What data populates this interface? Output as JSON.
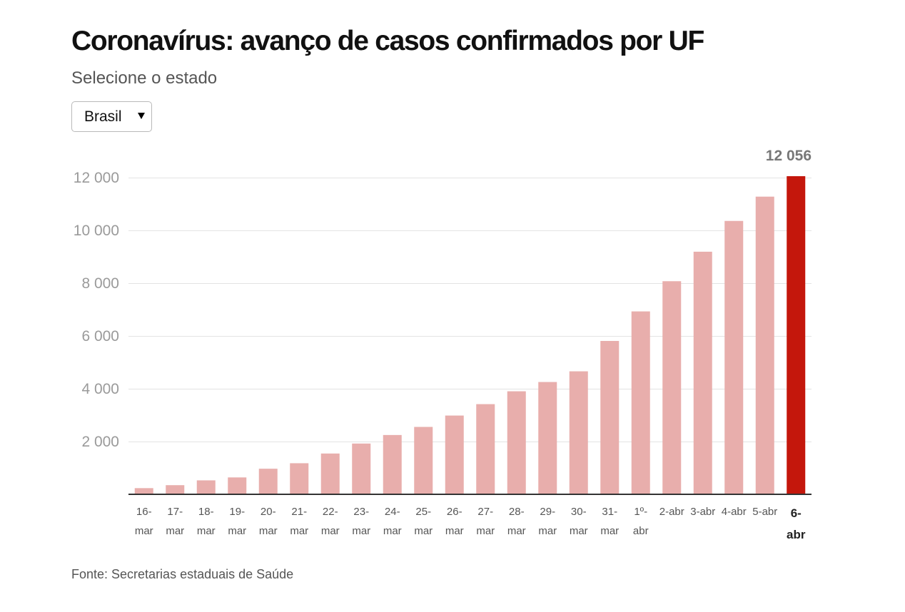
{
  "controls": {
    "prompt": "Selecione o estado",
    "state_select": {
      "value": "Brasil",
      "icon": "caret-down-icon"
    }
  },
  "chart_data": {
    "type": "bar",
    "title": "Coronavírus: avanço de casos confirmados por UF",
    "categories": [
      "16-mar",
      "17-mar",
      "18-mar",
      "19-mar",
      "20-mar",
      "21-mar",
      "22-mar",
      "23-mar",
      "24-mar",
      "25-mar",
      "26-mar",
      "27-mar",
      "28-mar",
      "29-mar",
      "30-mar",
      "31-mar",
      "1º-abr",
      "2-abr",
      "3-abr",
      "4-abr",
      "5-abr",
      "6-abr"
    ],
    "values": [
      234,
      346,
      529,
      640,
      970,
      1178,
      1546,
      1924,
      2247,
      2554,
      2985,
      3417,
      3904,
      4256,
      4661,
      5812,
      6931,
      8076,
      9194,
      10360,
      11281,
      12056
    ],
    "ylim": [
      0,
      12056
    ],
    "yticks": [
      2000,
      4000,
      6000,
      8000,
      10000,
      12000
    ],
    "ytick_labels": [
      "2 000",
      "4 000",
      "6 000",
      "8 000",
      "10 000",
      "12 000"
    ],
    "grid": true,
    "highlight": {
      "category": "6-abr",
      "value_label": "12 056"
    },
    "colors": {
      "bar": "#e8aeac",
      "highlight": "#c4170c",
      "axis": "#333333",
      "grid": "#e3e3e3"
    },
    "source": "Fonte: Secretarias estaduais de Saúde"
  }
}
